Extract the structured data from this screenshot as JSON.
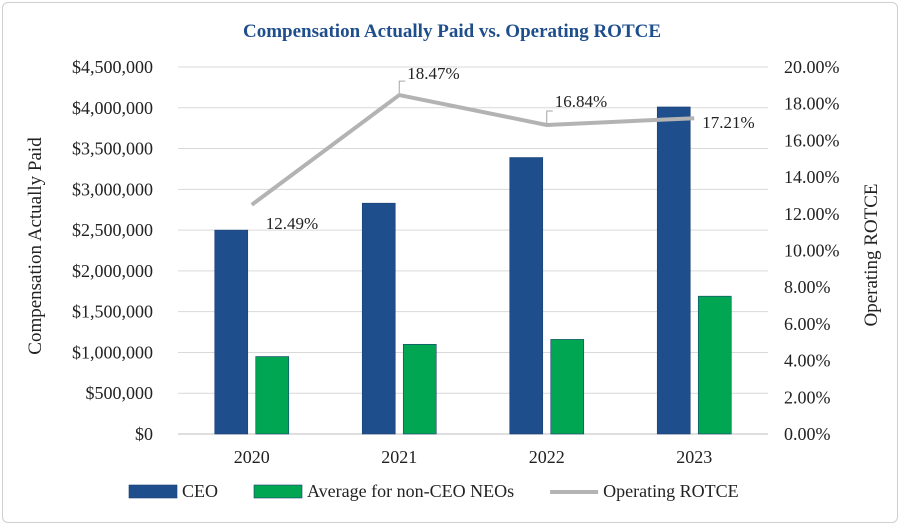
{
  "chart_data": {
    "type": "bar",
    "title": "Compensation Actually Paid vs. Operating ROTCE",
    "ylabel": "Compensation Actually Paid",
    "y2label": "Operating ROTCE",
    "categories": [
      "2020",
      "2021",
      "2022",
      "2023"
    ],
    "ylim": [
      0,
      4500000
    ],
    "y2lim": [
      0,
      20
    ],
    "yticks": [
      "$0",
      "$500,000",
      "$1,000,000",
      "$1,500,000",
      "$2,000,000",
      "$2,500,000",
      "$3,000,000",
      "$3,500,000",
      "$4,000,000",
      "$4,500,000"
    ],
    "y2ticks": [
      "0.00%",
      "2.00%",
      "4.00%",
      "6.00%",
      "8.00%",
      "10.00%",
      "12.00%",
      "14.00%",
      "16.00%",
      "18.00%",
      "20.00%"
    ],
    "grid": true,
    "legend_position": "bottom",
    "series": [
      {
        "name": "CEO",
        "type": "bar",
        "axis": "left",
        "color": "#1f4e8c",
        "values": [
          2500000,
          2830000,
          3390000,
          4010000
        ]
      },
      {
        "name": "Average for non-CEO NEOs",
        "type": "bar",
        "axis": "left",
        "color": "#00a651",
        "values": [
          950000,
          1100000,
          1160000,
          1690000
        ]
      },
      {
        "name": "Operating ROTCE",
        "type": "line",
        "axis": "right",
        "color": "#b3b3b3",
        "values": [
          12.49,
          18.47,
          16.84,
          17.21
        ],
        "labels": [
          "12.49%",
          "18.47%",
          "16.84%",
          "17.21%"
        ]
      }
    ]
  }
}
